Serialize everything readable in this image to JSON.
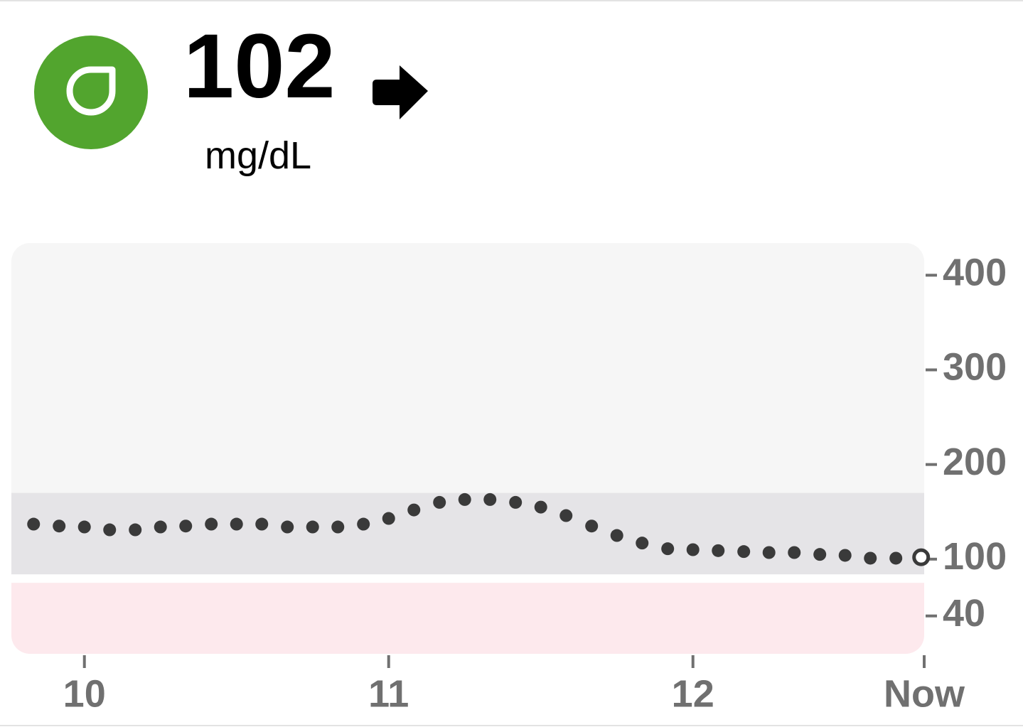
{
  "current": {
    "value": "102",
    "unit": "mg/dL"
  },
  "chart_data": {
    "type": "scatter",
    "series": [
      {
        "color": "#3a3a3a",
        "x": [
          9.833,
          9.917,
          10,
          10.083,
          10.167,
          10.25,
          10.333,
          10.417,
          10.5,
          10.583,
          10.667,
          10.75,
          10.833,
          10.917,
          11,
          11.083,
          11.167,
          11.25,
          11.333,
          11.417,
          11.5,
          11.583,
          11.667,
          11.75,
          11.833,
          11.917,
          12,
          12.083,
          12.167,
          12.25,
          12.333,
          12.417,
          12.5,
          12.583,
          12.667,
          12.75
        ],
        "values": [
          137,
          135,
          134,
          131,
          131,
          134,
          135,
          137,
          137,
          137,
          134,
          134,
          134,
          137,
          143,
          152,
          160,
          163,
          163,
          160,
          155,
          146,
          135,
          125,
          117,
          111,
          110,
          109,
          108,
          107,
          107,
          105,
          104,
          101,
          101,
          102
        ]
      }
    ],
    "xlim": [
      9.76,
      12.76
    ],
    "xticks": [
      10,
      11,
      12,
      {
        "value": 12.76,
        "label": "Now"
      }
    ],
    "ylim": [
      0,
      434
    ],
    "yticks": [
      40,
      100,
      200,
      300,
      400
    ],
    "bands": [
      {
        "range": [
          84,
          170
        ],
        "color": "#e5e4e7"
      },
      {
        "range": [
          0,
          75
        ],
        "color": "#fde9ed"
      }
    ]
  }
}
